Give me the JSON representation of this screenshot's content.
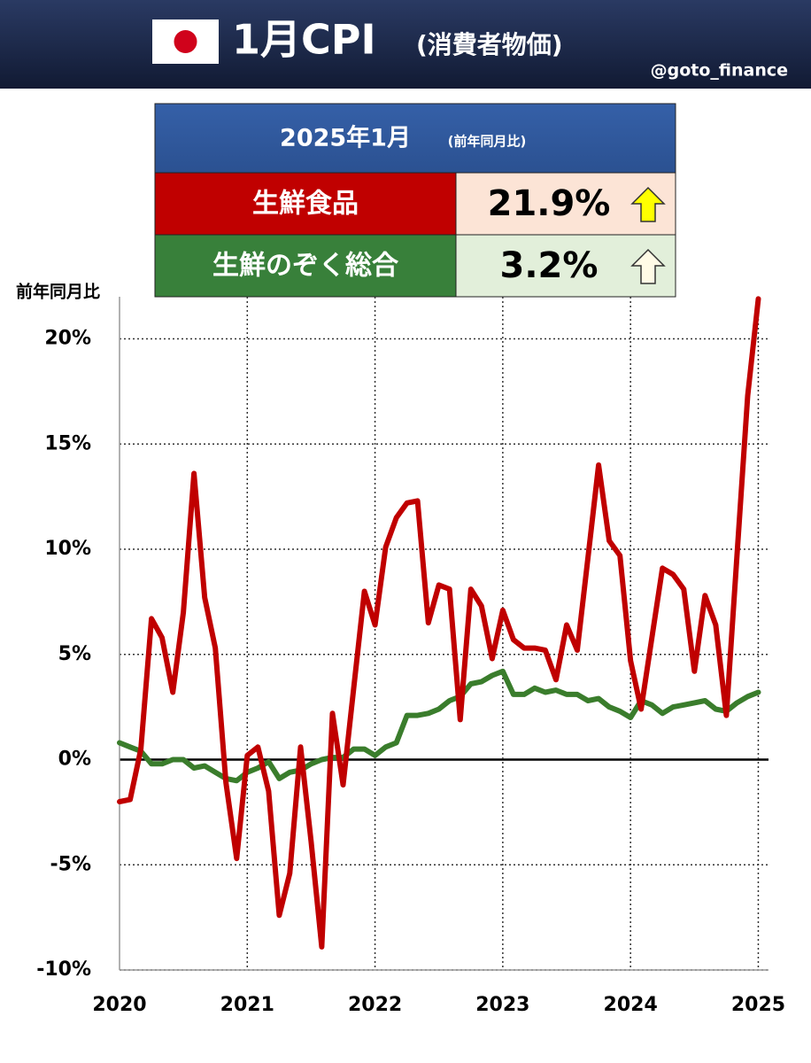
{
  "header": {
    "title": "1月CPI",
    "subtitle": "(消費者物価)",
    "handle": "@goto_finance"
  },
  "summary": {
    "period": "2025年1月",
    "note": "(前年同月比)",
    "rows": [
      {
        "value": "21.9%"
      },
      {
        "value": "3.2%"
      }
    ]
  },
  "chart_data": {
    "type": "line",
    "y_label": "前年同月比",
    "x": [
      2020,
      2020.083,
      2020.167,
      2020.25,
      2020.333,
      2020.417,
      2020.5,
      2020.583,
      2020.667,
      2020.75,
      2020.833,
      2020.917,
      2021,
      2021.083,
      2021.167,
      2021.25,
      2021.333,
      2021.417,
      2021.5,
      2021.583,
      2021.667,
      2021.75,
      2021.833,
      2021.917,
      2022,
      2022.083,
      2022.167,
      2022.25,
      2022.333,
      2022.417,
      2022.5,
      2022.583,
      2022.667,
      2022.75,
      2022.833,
      2022.917,
      2023,
      2023.083,
      2023.167,
      2023.25,
      2023.333,
      2023.417,
      2023.5,
      2023.583,
      2023.667,
      2023.75,
      2023.833,
      2023.917,
      2024,
      2024.083,
      2024.167,
      2024.25,
      2024.333,
      2024.417,
      2024.5,
      2024.583,
      2024.667,
      2024.75,
      2024.833,
      2024.917,
      2025
    ],
    "series": [
      {
        "name": "生鮮食品",
        "color": "#c00000",
        "values": [
          -2.0,
          -1.9,
          0.5,
          6.7,
          5.8,
          3.2,
          7.0,
          13.6,
          7.7,
          5.3,
          -1.1,
          -4.7,
          0.2,
          0.6,
          -1.5,
          -7.4,
          -5.4,
          0.6,
          -3.9,
          -8.9,
          2.2,
          -1.2,
          3.4,
          8.0,
          6.4,
          10.1,
          11.5,
          12.2,
          12.3,
          6.5,
          8.3,
          8.1,
          1.9,
          8.1,
          7.3,
          4.8,
          7.1,
          5.7,
          5.3,
          5.3,
          5.2,
          3.8,
          6.4,
          5.2,
          9.6,
          14.0,
          10.4,
          9.7,
          4.7,
          2.4,
          5.8,
          9.1,
          8.8,
          8.1,
          4.2,
          7.8,
          6.4,
          2.1,
          9.7,
          17.3,
          21.9
        ]
      },
      {
        "name": "生鮮のぞく総合",
        "color": "#3a7d2c",
        "values": [
          0.8,
          0.6,
          0.4,
          -0.2,
          -0.2,
          0.0,
          0.0,
          -0.4,
          -0.3,
          -0.6,
          -0.9,
          -1.0,
          -0.6,
          -0.4,
          -0.1,
          -0.9,
          -0.6,
          -0.5,
          -0.2,
          0.0,
          0.1,
          0.1,
          0.5,
          0.5,
          0.2,
          0.6,
          0.8,
          2.1,
          2.1,
          2.2,
          2.4,
          2.8,
          3.0,
          3.6,
          3.7,
          4.0,
          4.2,
          3.1,
          3.1,
          3.4,
          3.2,
          3.3,
          3.1,
          3.1,
          2.8,
          2.9,
          2.5,
          2.3,
          2.0,
          2.8,
          2.6,
          2.2,
          2.5,
          2.6,
          2.7,
          2.8,
          2.4,
          2.3,
          2.7,
          3.0,
          3.2
        ]
      }
    ],
    "xlim": [
      2020,
      2025.08
    ],
    "xticks": [
      2020,
      2021,
      2022,
      2023,
      2024,
      2025
    ],
    "ylim": [
      -10,
      22
    ],
    "yticks": [
      {
        "value": -10,
        "label": "-10%"
      },
      {
        "value": -5,
        "label": "-5%"
      },
      {
        "value": 0,
        "label": "0%"
      },
      {
        "value": 5,
        "label": "5%"
      },
      {
        "value": 10,
        "label": "10%"
      },
      {
        "value": 15,
        "label": "15%"
      },
      {
        "value": 20,
        "label": "20%"
      }
    ],
    "grid": true
  }
}
